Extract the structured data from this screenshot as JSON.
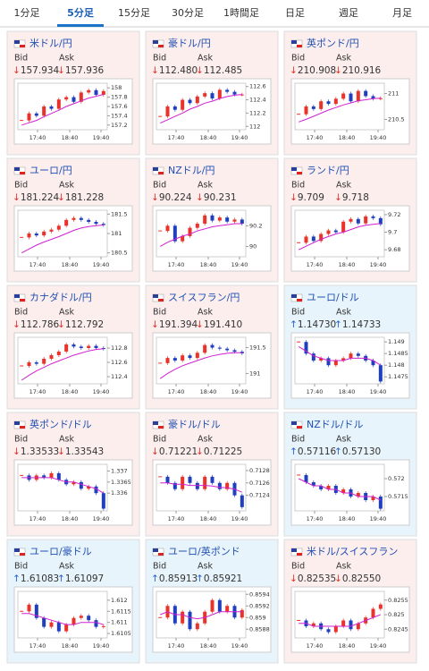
{
  "tabs": [
    "1分足",
    "5分足",
    "15分足",
    "30分足",
    "1時間足",
    "日足",
    "週足",
    "月足"
  ],
  "active_tab": 1,
  "labels": {
    "bid": "Bid",
    "ask": "Ask"
  },
  "time_labels": [
    "17:40",
    "18:40",
    "19:40"
  ],
  "candle_colors": {
    "up": "#e8322a",
    "down": "#1f3fbf"
  },
  "ma_color": "#d020d0",
  "panels": [
    {
      "name": "米ドル/円",
      "bid": "↓157.934",
      "ask": "↓157.936",
      "background": "#fdeeee",
      "chart": {
        "type": "candlestick",
        "ylim": [
          157.1,
          158.1
        ],
        "yticks": [
          158,
          157.8,
          157.6,
          157.4,
          157.2
        ],
        "values": [
          157.3,
          157.45,
          157.4,
          157.6,
          157.55,
          157.75,
          157.8,
          157.7,
          157.9,
          157.95,
          157.85,
          157.93
        ],
        "ma": [
          157.2,
          157.25,
          157.3,
          157.38,
          157.45,
          157.52,
          157.6,
          157.66,
          157.72,
          157.78,
          157.82,
          157.86
        ]
      }
    },
    {
      "name": "豪ドル/円",
      "bid": "↓112.480",
      "ask": "↓112.485",
      "background": "#fdeeee",
      "chart": {
        "type": "candlestick",
        "ylim": [
          111.95,
          112.65
        ],
        "yticks": [
          112.6,
          112.4,
          112.2,
          112
        ],
        "values": [
          112.15,
          112.3,
          112.25,
          112.4,
          112.35,
          112.45,
          112.5,
          112.42,
          112.55,
          112.52,
          112.48,
          112.48
        ],
        "ma": [
          112.05,
          112.1,
          112.15,
          112.2,
          112.26,
          112.3,
          112.35,
          112.38,
          112.42,
          112.45,
          112.47,
          112.48
        ]
      }
    },
    {
      "name": "英ポンド/円",
      "bid": "↓210.908",
      "ask": "↓210.916",
      "background": "#fdeeee",
      "chart": {
        "type": "candlestick",
        "ylim": [
          210.3,
          211.2
        ],
        "yticks": [
          211,
          210.5
        ],
        "values": [
          210.6,
          210.75,
          210.7,
          210.85,
          210.8,
          210.9,
          211.0,
          210.85,
          211.05,
          210.95,
          210.9,
          210.91
        ],
        "ma": [
          210.45,
          210.5,
          210.56,
          210.62,
          210.68,
          210.73,
          210.78,
          210.82,
          210.86,
          210.88,
          210.9,
          210.91
        ]
      }
    },
    {
      "name": "ユーロ/円",
      "bid": "↓181.224",
      "ask": "↓181.228",
      "background": "#fdeeee",
      "chart": {
        "type": "candlestick",
        "ylim": [
          180.4,
          181.6
        ],
        "yticks": [
          181.5,
          181,
          180.5
        ],
        "values": [
          180.9,
          181.0,
          180.95,
          181.05,
          181.1,
          181.2,
          181.35,
          181.4,
          181.35,
          181.3,
          181.25,
          181.22
        ],
        "ma": [
          180.5,
          180.6,
          180.7,
          180.78,
          180.85,
          180.92,
          181.0,
          181.08,
          181.14,
          181.18,
          181.2,
          181.22
        ]
      }
    },
    {
      "name": "NZドル/円",
      "bid": "↓90.224",
      "ask": "↓90.231",
      "background": "#fdeeee",
      "chart": {
        "type": "candlestick",
        "ylim": [
          89.9,
          90.35
        ],
        "yticks": [
          90.2,
          90
        ],
        "values": [
          90.15,
          90.2,
          90.05,
          90.1,
          90.18,
          90.22,
          90.3,
          90.25,
          90.28,
          90.24,
          90.26,
          90.22
        ],
        "ma": [
          90.0,
          90.04,
          90.07,
          90.1,
          90.12,
          90.15,
          90.17,
          90.19,
          90.2,
          90.21,
          90.22,
          90.22
        ]
      }
    },
    {
      "name": "ランド/円",
      "bid": "↓9.709",
      "ask": "↓9.718",
      "background": "#fdeeee",
      "chart": {
        "type": "candlestick",
        "ylim": [
          9.672,
          9.725
        ],
        "yticks": [
          9.72,
          9.7,
          9.68
        ],
        "values": [
          9.688,
          9.695,
          9.69,
          9.698,
          9.702,
          9.7,
          9.712,
          9.715,
          9.71,
          9.718,
          9.716,
          9.709
        ],
        "ma": [
          9.68,
          9.684,
          9.688,
          9.692,
          9.695,
          9.698,
          9.7,
          9.703,
          9.706,
          9.708,
          9.709,
          9.71
        ]
      }
    },
    {
      "name": "カナダドル/円",
      "bid": "↓112.786",
      "ask": "↓112.792",
      "background": "#fdeeee",
      "chart": {
        "type": "candlestick",
        "ylim": [
          112.3,
          112.95
        ],
        "yticks": [
          112.8,
          112.6,
          112.4
        ],
        "values": [
          112.55,
          112.6,
          112.58,
          112.65,
          112.7,
          112.75,
          112.85,
          112.82,
          112.8,
          112.83,
          112.8,
          112.79
        ],
        "ma": [
          112.35,
          112.42,
          112.48,
          112.53,
          112.58,
          112.62,
          112.66,
          112.7,
          112.73,
          112.76,
          112.78,
          112.79
        ]
      }
    },
    {
      "name": "スイスフラン/円",
      "bid": "↓191.394",
      "ask": "↓191.410",
      "background": "#fdeeee",
      "chart": {
        "type": "candlestick",
        "ylim": [
          190.8,
          191.7
        ],
        "yticks": [
          191.5,
          191
        ],
        "values": [
          191.2,
          191.3,
          191.25,
          191.35,
          191.3,
          191.4,
          191.55,
          191.5,
          191.48,
          191.45,
          191.42,
          191.39
        ],
        "ma": [
          190.9,
          191.0,
          191.08,
          191.15,
          191.2,
          191.25,
          191.3,
          191.34,
          191.37,
          191.39,
          191.4,
          191.4
        ]
      }
    },
    {
      "name": "ユーロ/ドル",
      "bid": "↑1.14730",
      "ask": "↑1.14733",
      "background": "#e8f4fb",
      "chart": {
        "type": "candlestick",
        "ylim": [
          1.1472,
          1.1492
        ],
        "yticks": [
          1.149,
          1.1485,
          1.148,
          1.1475
        ],
        "values": [
          1.149,
          1.1485,
          1.1482,
          1.1483,
          1.148,
          1.1482,
          1.1483,
          1.1485,
          1.1484,
          1.1482,
          1.148,
          1.1473
        ],
        "ma": [
          1.1488,
          1.1486,
          1.1484,
          1.1483,
          1.1482,
          1.1482,
          1.1482,
          1.1483,
          1.1483,
          1.1483,
          1.1482,
          1.148
        ]
      }
    },
    {
      "name": "英ポンド/ドル",
      "bid": "↓1.33533",
      "ask": "↓1.33543",
      "background": "#fdeeee",
      "chart": {
        "type": "candlestick",
        "ylim": [
          1.3352,
          1.3373
        ],
        "yticks": [
          1.337,
          1.3365,
          1.336
        ],
        "values": [
          1.3368,
          1.3366,
          1.3368,
          1.3367,
          1.3369,
          1.3366,
          1.3364,
          1.3365,
          1.3362,
          1.3363,
          1.336,
          1.3353
        ],
        "ma": [
          1.3367,
          1.3367,
          1.3367,
          1.3367,
          1.3367,
          1.3366,
          1.3365,
          1.3365,
          1.3364,
          1.3363,
          1.3362,
          1.336
        ]
      }
    },
    {
      "name": "豪ドル/ドル",
      "bid": "↓0.71221",
      "ask": "↓0.71225",
      "background": "#fdeeee",
      "chart": {
        "type": "candlestick",
        "ylim": [
          0.71215,
          0.7129
        ],
        "yticks": [
          0.7128,
          0.7126,
          0.7124
        ],
        "values": [
          0.7127,
          0.7126,
          0.7125,
          0.7127,
          0.7126,
          0.7125,
          0.7127,
          0.7126,
          0.7125,
          0.7126,
          0.7124,
          0.71221
        ],
        "ma": [
          0.7126,
          0.7126,
          0.71258,
          0.71258,
          0.71256,
          0.71256,
          0.71256,
          0.71255,
          0.71253,
          0.71252,
          0.7125,
          0.71245
        ]
      }
    },
    {
      "name": "NZドル/ドル",
      "bid": "↑0.57116",
      "ask": "↑0.57130",
      "background": "#e8f4fb",
      "chart": {
        "type": "candlestick",
        "ylim": [
          0.5711,
          0.5724
        ],
        "yticks": [
          0.572,
          0.5715
        ],
        "values": [
          0.5721,
          0.5719,
          0.5718,
          0.5717,
          0.5718,
          0.5716,
          0.5717,
          0.5715,
          0.5716,
          0.5714,
          0.5715,
          0.57116
        ],
        "ma": [
          0.572,
          0.5719,
          0.5718,
          0.5718,
          0.5717,
          0.5717,
          0.5716,
          0.5716,
          0.5715,
          0.5715,
          0.5715,
          0.5714
        ]
      }
    },
    {
      "name": "ユーロ/豪ドル",
      "bid": "↑1.61083",
      "ask": "↑1.61097",
      "background": "#e8f4fb",
      "chart": {
        "type": "candlestick",
        "ylim": [
          1.6103,
          1.6124
        ],
        "yticks": [
          1.612,
          1.6115,
          1.611,
          1.6105
        ],
        "values": [
          1.6115,
          1.6118,
          1.6112,
          1.6108,
          1.611,
          1.6106,
          1.6109,
          1.6112,
          1.6113,
          1.6111,
          1.6108,
          1.61083
        ],
        "ma": [
          1.6114,
          1.6114,
          1.6113,
          1.6112,
          1.6111,
          1.611,
          1.6109,
          1.6109,
          1.611,
          1.611,
          1.611,
          1.6109
        ]
      }
    },
    {
      "name": "ユーロ/英ポンド",
      "bid": "↑0.85913",
      "ask": "↑0.85921",
      "background": "#e8f4fb",
      "chart": {
        "type": "candlestick",
        "ylim": [
          0.85865,
          0.85945
        ],
        "yticks": [
          0.8594,
          0.8592,
          0.859,
          0.8588
        ],
        "values": [
          0.859,
          0.8592,
          0.8589,
          0.8591,
          0.8588,
          0.8589,
          0.8591,
          0.8593,
          0.8591,
          0.8592,
          0.859,
          0.85913
        ],
        "ma": [
          0.85905,
          0.8591,
          0.85905,
          0.85905,
          0.859,
          0.85898,
          0.859,
          0.85905,
          0.8591,
          0.8591,
          0.8591,
          0.8591
        ]
      }
    },
    {
      "name": "米ドル/スイスフラン",
      "bid": "↓0.82535",
      "ask": "↓0.82550",
      "background": "#fdeeee",
      "chart": {
        "type": "candlestick",
        "ylim": [
          0.8242,
          0.8258
        ],
        "yticks": [
          0.8255,
          0.825,
          0.8245
        ],
        "values": [
          0.8248,
          0.8246,
          0.8247,
          0.8245,
          0.8244,
          0.8246,
          0.8248,
          0.8245,
          0.8247,
          0.8249,
          0.8252,
          0.82535
        ],
        "ma": [
          0.8247,
          0.8247,
          0.8246,
          0.8246,
          0.8246,
          0.8246,
          0.8246,
          0.8246,
          0.8247,
          0.8248,
          0.8249,
          0.825
        ]
      }
    }
  ]
}
